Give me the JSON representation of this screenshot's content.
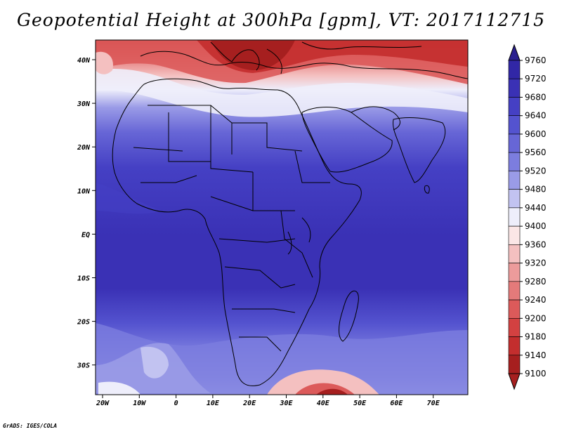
{
  "title": "Geopotential Height at 300hPa [gpm], VT: 2017112715",
  "credit": "GrADS: IGES/COLA",
  "map": {
    "lon_labels": [
      "20W",
      "10W",
      "0",
      "10E",
      "20E",
      "30E",
      "40E",
      "50E",
      "60E",
      "70E"
    ],
    "lat_labels": [
      "40N",
      "30N",
      "20N",
      "10N",
      "EQ",
      "10S",
      "20S",
      "30S"
    ]
  },
  "colorbar": {
    "levels": [
      {
        "value": "9760",
        "color": "#2a1f8f"
      },
      {
        "value": "9720",
        "color": "#3127a6"
      },
      {
        "value": "9680",
        "color": "#3a31b5"
      },
      {
        "value": "9640",
        "color": "#4540c4"
      },
      {
        "value": "9600",
        "color": "#5453cf"
      },
      {
        "value": "9560",
        "color": "#6766d6"
      },
      {
        "value": "9520",
        "color": "#7c7ddf"
      },
      {
        "value": "9480",
        "color": "#9a9be7"
      },
      {
        "value": "9440",
        "color": "#c2c3f1"
      },
      {
        "value": "9400",
        "color": "#eeeefb"
      },
      {
        "value": "9360",
        "color": "#fbe6e6"
      },
      {
        "value": "9320",
        "color": "#f4c0c0"
      },
      {
        "value": "9280",
        "color": "#ec9b9b"
      },
      {
        "value": "9240",
        "color": "#e47a7a"
      },
      {
        "value": "9200",
        "color": "#dc5a5a"
      },
      {
        "value": "9180",
        "color": "#d34141"
      },
      {
        "value": "9140",
        "color": "#c32e2e"
      },
      {
        "value": "9100",
        "color": "#a61f1f"
      }
    ]
  }
}
